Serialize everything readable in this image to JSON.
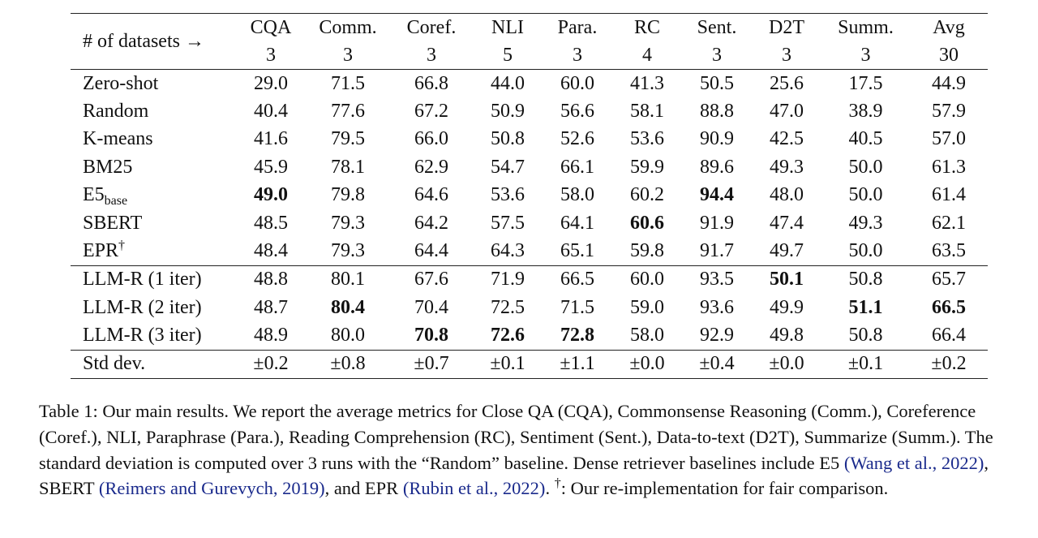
{
  "table": {
    "header_label": "# of datasets →",
    "columns": [
      {
        "name": "CQA",
        "count": "3"
      },
      {
        "name": "Comm.",
        "count": "3"
      },
      {
        "name": "Coref.",
        "count": "3"
      },
      {
        "name": "NLI",
        "count": "5"
      },
      {
        "name": "Para.",
        "count": "3"
      },
      {
        "name": "RC",
        "count": "4"
      },
      {
        "name": "Sent.",
        "count": "3"
      },
      {
        "name": "D2T",
        "count": "3"
      },
      {
        "name": "Summ.",
        "count": "3"
      },
      {
        "name": "Avg",
        "count": "30"
      }
    ],
    "baseline_rows": [
      {
        "label": "Zero-shot",
        "values": [
          "29.0",
          "71.5",
          "66.8",
          "44.0",
          "60.0",
          "41.3",
          "50.5",
          "25.6",
          "17.5",
          "44.9"
        ],
        "bold": []
      },
      {
        "label": "Random",
        "values": [
          "40.4",
          "77.6",
          "67.2",
          "50.9",
          "56.6",
          "58.1",
          "88.8",
          "47.0",
          "38.9",
          "57.9"
        ],
        "bold": []
      },
      {
        "label": "K-means",
        "values": [
          "41.6",
          "79.5",
          "66.0",
          "50.8",
          "52.6",
          "53.6",
          "90.9",
          "42.5",
          "40.5",
          "57.0"
        ],
        "bold": []
      },
      {
        "label": "BM25",
        "values": [
          "45.9",
          "78.1",
          "62.9",
          "54.7",
          "66.1",
          "59.9",
          "89.6",
          "49.3",
          "50.0",
          "61.3"
        ],
        "bold": []
      },
      {
        "label": "E5",
        "label_sub": "base",
        "values": [
          "49.0",
          "79.8",
          "64.6",
          "53.6",
          "58.0",
          "60.2",
          "94.4",
          "48.0",
          "50.0",
          "61.4"
        ],
        "bold": [
          0,
          6
        ]
      },
      {
        "label": "SBERT",
        "values": [
          "48.5",
          "79.3",
          "64.2",
          "57.5",
          "64.1",
          "60.6",
          "91.9",
          "47.4",
          "49.3",
          "62.1"
        ],
        "bold": [
          5
        ]
      },
      {
        "label": "EPR",
        "label_sup": "†",
        "values": [
          "48.4",
          "79.3",
          "64.4",
          "64.3",
          "65.1",
          "59.8",
          "91.7",
          "49.7",
          "50.0",
          "63.5"
        ],
        "bold": []
      }
    ],
    "llmr_rows": [
      {
        "label": "LLM-R (1 iter)",
        "values": [
          "48.8",
          "80.1",
          "67.6",
          "71.9",
          "66.5",
          "60.0",
          "93.5",
          "50.1",
          "50.8",
          "65.7"
        ],
        "bold": [
          7
        ]
      },
      {
        "label": "LLM-R (2 iter)",
        "values": [
          "48.7",
          "80.4",
          "70.4",
          "72.5",
          "71.5",
          "59.0",
          "93.6",
          "49.9",
          "51.1",
          "66.5"
        ],
        "bold": [
          1,
          8,
          9
        ]
      },
      {
        "label": "LLM-R (3 iter)",
        "values": [
          "48.9",
          "80.0",
          "70.8",
          "72.6",
          "72.8",
          "58.0",
          "92.9",
          "49.8",
          "50.8",
          "66.4"
        ],
        "bold": [
          2,
          3,
          4
        ]
      }
    ],
    "std_row": {
      "label": "Std dev.",
      "values": [
        "±0.2",
        "±0.8",
        "±0.7",
        "±0.1",
        "±1.1",
        "±0.0",
        "±0.4",
        "±0.0",
        "±0.1",
        "±0.2"
      ]
    }
  },
  "caption": {
    "part1": "Table 1: Our main results. We report the average metrics for Close QA (CQA), Commonsense Reasoning (Comm.), Coreference (Coref.), NLI, Paraphrase (Para.), Reading Comprehension (RC), Sentiment (Sent.), Data-to-text (D2T), Summarize (Summ.). The standard deviation is computed over 3 runs with the “Random” baseline. Dense retriever baselines include E5 ",
    "cite1": "(Wang et al., 2022)",
    "part2": ", SBERT ",
    "cite2": "(Reimers and Gurevych, 2019)",
    "part3": ", and EPR ",
    "cite3": "(Rubin et al., 2022)",
    "part4": ". ",
    "dagger": "†",
    "part5": ": Our re-implementation for fair comparison."
  }
}
